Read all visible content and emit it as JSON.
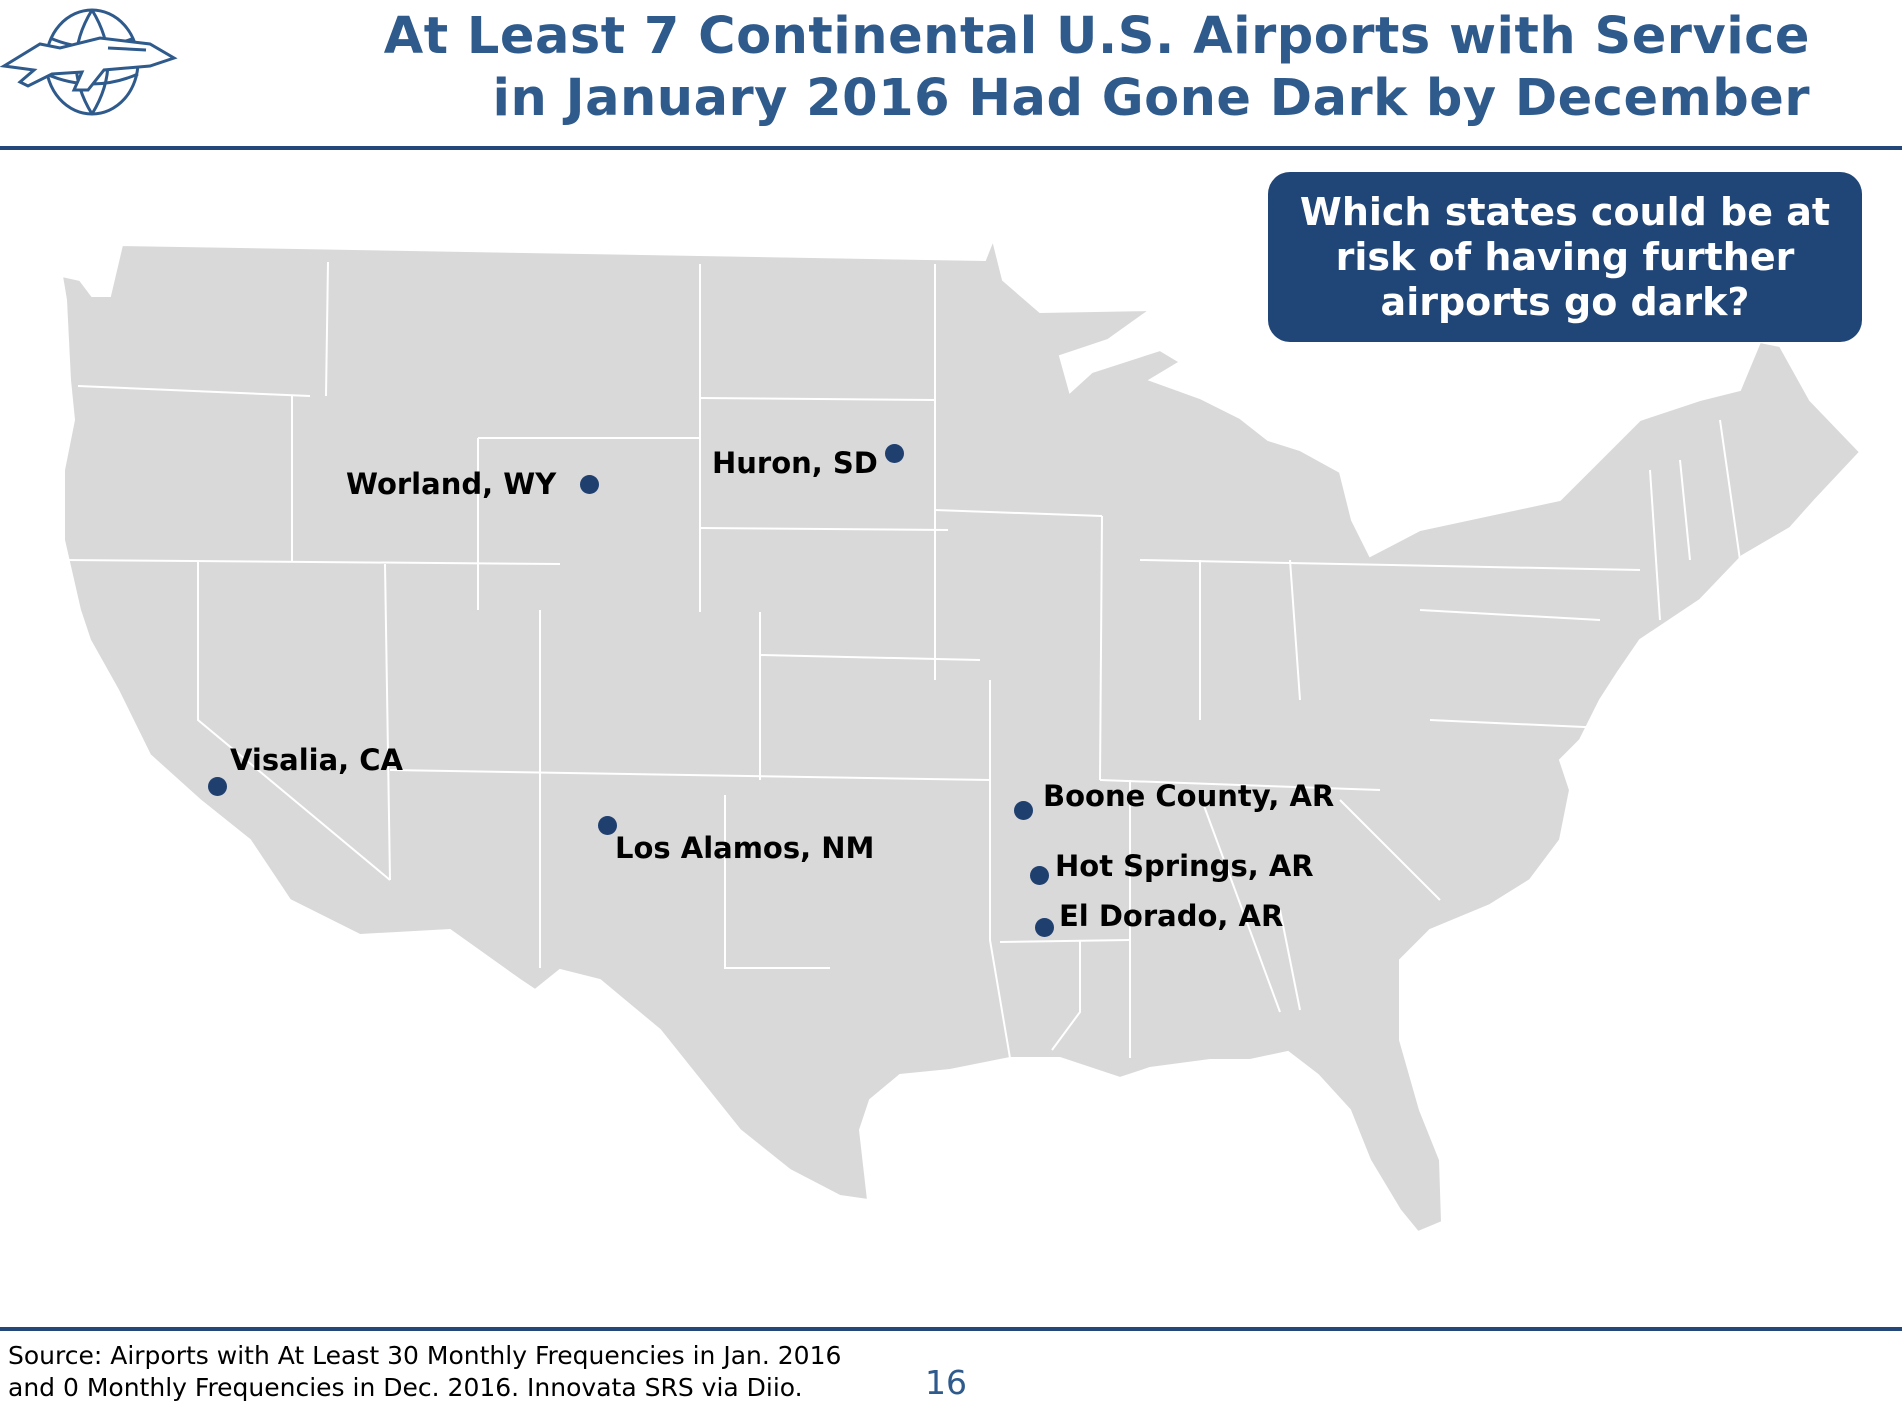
{
  "title": {
    "line1": "At Least 7 Continental U.S. Airports with Service",
    "line2": "in January 2016 Had Gone Dark by December"
  },
  "callout": {
    "text": "Which states could be at risk of having further airports go dark?"
  },
  "map": {
    "region": "Continental United States",
    "land_color": "#d9d9d9",
    "border_color": "#ffffff",
    "marker_color": "#1f3f6f",
    "markers": [
      {
        "label": "Worland, WY"
      },
      {
        "label": "Huron, SD"
      },
      {
        "label": "Visalia, CA"
      },
      {
        "label": "Los Alamos, NM"
      },
      {
        "label": "Boone County, AR"
      },
      {
        "label": "Hot Springs, AR"
      },
      {
        "label": "El Dorado, AR"
      }
    ]
  },
  "footer": {
    "source_line1": "Source: Airports with At Least 30 Monthly Frequencies in Jan. 2016",
    "source_line2": "and 0 Monthly Frequencies in Dec. 2016. Innovata SRS via Diio.",
    "page_number": "16"
  },
  "colors": {
    "title": "#2f5a8c",
    "rule": "#24477a",
    "callout_bg": "#204577"
  }
}
